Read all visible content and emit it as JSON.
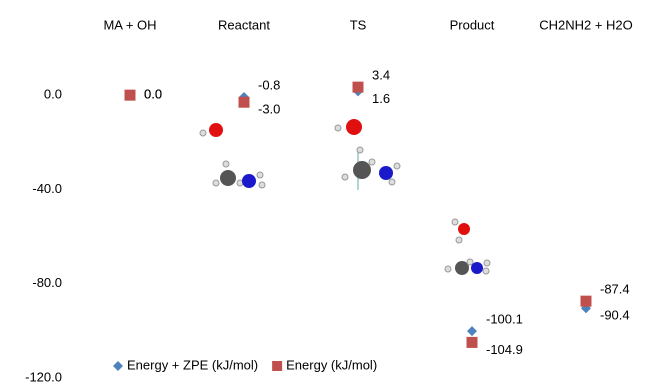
{
  "chart_data": {
    "type": "scatter",
    "categories": [
      "MA + OH",
      "Reactant",
      "TS",
      "Product",
      "CH2NH2 + H2O"
    ],
    "series": [
      {
        "name": "Energy + ZPE (kJ/mol)",
        "color": "#4f81bd",
        "marker": "diamond",
        "values": [
          0.0,
          -0.8,
          1.6,
          -100.1,
          -90.4
        ],
        "value_labels": [
          "0.0",
          "-0.8",
          "1.6",
          "-100.1",
          "-90.4"
        ]
      },
      {
        "name": "Energy (kJ/mol)",
        "color": "#c0504d",
        "marker": "square",
        "values": [
          0.0,
          -3.0,
          3.4,
          -104.9,
          -87.4
        ],
        "value_labels": [
          "0.0",
          "-3.0",
          "3.4",
          "-104.9",
          "-87.4"
        ]
      }
    ],
    "ylim": [
      -120,
      20
    ],
    "yticks": [
      {
        "value": 0,
        "label": "0.0"
      },
      {
        "value": -40,
        "label": "-40.0"
      },
      {
        "value": -80,
        "label": "-80.0"
      },
      {
        "value": -120,
        "label": "-120.0"
      }
    ],
    "grid": false
  }
}
